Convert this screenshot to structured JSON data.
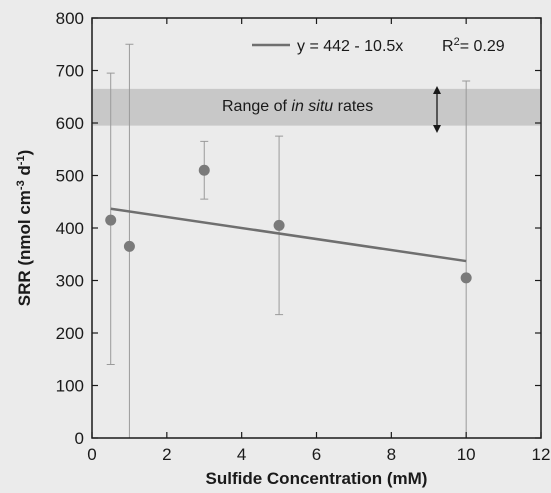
{
  "chart_data": {
    "type": "scatter",
    "xlabel": "Sulfide Concentration (mM)",
    "ylabel_parts": [
      "SRR (nmol cm",
      "-3",
      " d",
      "-1",
      ")"
    ],
    "xlim": [
      0,
      12
    ],
    "ylim": [
      0,
      800
    ],
    "x_ticks": [
      0,
      2,
      4,
      6,
      8,
      10,
      12
    ],
    "y_ticks": [
      0,
      100,
      200,
      300,
      400,
      500,
      600,
      700,
      800
    ],
    "points": [
      {
        "x": 0.5,
        "y": 415,
        "err_low": 140,
        "err_high": 695
      },
      {
        "x": 1.0,
        "y": 365,
        "err_low": 0,
        "err_high": 750
      },
      {
        "x": 3.0,
        "y": 510,
        "err_low": 455,
        "err_high": 565
      },
      {
        "x": 5.0,
        "y": 405,
        "err_low": 235,
        "err_high": 575
      },
      {
        "x": 10.0,
        "y": 305,
        "err_low": 0,
        "err_high": 680
      }
    ],
    "fit_line": {
      "x0": 0.5,
      "x1": 10.0,
      "intercept": 442,
      "slope": -10.5
    },
    "legend": {
      "equation": "y = 442 - 10.5x",
      "r2_label": "R",
      "r2_sup": "2",
      "r2_value": "= 0.29"
    },
    "shaded_band": {
      "y_low": 595,
      "y_high": 665
    },
    "band_label_parts": [
      "Range of ",
      "in situ",
      " rates"
    ],
    "grid": false,
    "colors": {
      "marker": "#7a7a7a",
      "line": "#6f6f6f",
      "errorbar": "#9a9a9a",
      "band": "#c8c8c8",
      "axis": "#1a1a1a"
    }
  }
}
